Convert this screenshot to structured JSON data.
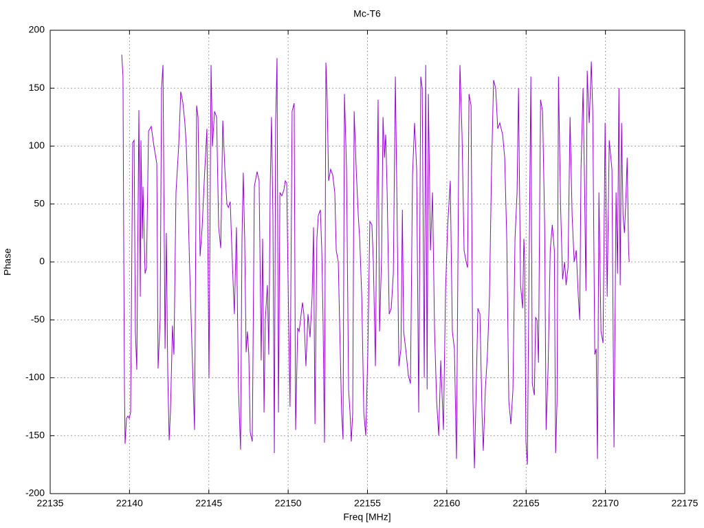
{
  "chart_data": {
    "type": "line",
    "title": "Mc-T6",
    "xlabel": "Freq [MHz]",
    "ylabel": "Phase",
    "color": "#9400d3",
    "grid": true,
    "xlim": [
      22135,
      22175
    ],
    "xticks": [
      22135,
      22140,
      22145,
      22150,
      22155,
      22160,
      22165,
      22170,
      22175
    ],
    "ylim": [
      -200,
      200
    ],
    "yticks": [
      -200,
      -150,
      -100,
      -50,
      0,
      50,
      100,
      150,
      200
    ],
    "x": [
      22139.51,
      22139.59,
      22139.64,
      22139.68,
      22139.72,
      22139.81,
      22139.9,
      22139.98,
      22140.07,
      22140.2,
      22140.29,
      22140.37,
      22140.46,
      22140.59,
      22140.68,
      22140.72,
      22140.81,
      22140.85,
      22140.98,
      22141.07,
      22141.2,
      22141.37,
      22141.54,
      22141.72,
      22141.8,
      22141.93,
      22142.02,
      22142.11,
      22142.24,
      22142.32,
      22142.41,
      22142.5,
      22142.58,
      22142.71,
      22142.8,
      22142.93,
      22143.1,
      22143.23,
      22143.36,
      22143.49,
      22143.58,
      22143.67,
      22143.8,
      22143.93,
      22144.1,
      22144.23,
      22144.32,
      22144.45,
      22144.58,
      22144.71,
      22144.88,
      22145.01,
      22145.14,
      22145.23,
      22145.36,
      22145.49,
      22145.62,
      22145.75,
      22145.88,
      22146.01,
      22146.14,
      22146.23,
      22146.35,
      22146.48,
      22146.61,
      22146.74,
      22146.87,
      22147.0,
      22147.09,
      22147.17,
      22147.26,
      22147.35,
      22147.43,
      22147.52,
      22147.61,
      22147.74,
      22147.87,
      22148.04,
      22148.17,
      22148.3,
      22148.39,
      22148.48,
      22148.56,
      22148.69,
      22148.78,
      22148.87,
      22148.95,
      22149.04,
      22149.13,
      22149.21,
      22149.3,
      22149.39,
      22149.43,
      22149.48,
      22149.6,
      22149.73,
      22149.82,
      22149.91,
      22150.04,
      22150.12,
      22150.25,
      22150.38,
      22150.47,
      22150.6,
      22150.69,
      22150.82,
      22150.9,
      22150.99,
      22151.12,
      22151.25,
      22151.38,
      22151.51,
      22151.6,
      22151.69,
      22151.81,
      22151.9,
      22152.03,
      22152.12,
      22152.2,
      22152.29,
      22152.38,
      22152.46,
      22152.55,
      22152.68,
      22152.81,
      22152.94,
      22153.03,
      22153.16,
      22153.24,
      22153.37,
      22153.46,
      22153.55,
      22153.68,
      22153.81,
      22153.9,
      22153.98,
      22154.07,
      22154.16,
      22154.29,
      22154.42,
      22154.51,
      22154.64,
      22154.77,
      22154.89,
      22155.02,
      22155.15,
      22155.28,
      22155.37,
      22155.5,
      22155.59,
      22155.67,
      22155.76,
      22155.89,
      22155.98,
      22156.07,
      22156.15,
      22156.24,
      22156.37,
      22156.5,
      22156.63,
      22156.76,
      22156.85,
      22156.98,
      22157.11,
      22157.2,
      22157.28,
      22157.41,
      22157.58,
      22157.71,
      22157.84,
      22157.97,
      22158.1,
      22158.23,
      22158.36,
      22158.45,
      22158.58,
      22158.67,
      22158.76,
      22158.84,
      22158.97,
      22159.1,
      22159.23,
      22159.36,
      22159.49,
      22159.62,
      22159.79,
      22159.92,
      22160.05,
      22160.22,
      22160.35,
      22160.48,
      22160.61,
      22160.74,
      22160.83,
      22160.96,
      22161.09,
      22161.22,
      22161.31,
      22161.4,
      22161.53,
      22161.65,
      22161.74,
      22161.83,
      22161.96,
      22162.09,
      22162.22,
      22162.3,
      22162.43,
      22162.56,
      22162.69,
      22162.82,
      22162.95,
      22163.08,
      22163.21,
      22163.34,
      22163.43,
      22163.52,
      22163.65,
      22163.78,
      22163.91,
      22164.04,
      22164.17,
      22164.3,
      22164.43,
      22164.52,
      22164.65,
      22164.78,
      22164.86,
      22164.91,
      22164.99,
      22165.08,
      22165.17,
      22165.3,
      22165.39,
      22165.52,
      22165.6,
      22165.69,
      22165.78,
      22165.91,
      22166.04,
      22166.17,
      22166.26,
      22166.39,
      22166.52,
      22166.65,
      22166.78,
      22166.86,
      22166.95,
      22167.04,
      22167.17,
      22167.3,
      22167.43,
      22167.52,
      22167.64,
      22167.77,
      22167.9,
      22168.03,
      22168.16,
      22168.29,
      22168.38,
      22168.46,
      22168.59,
      22168.68,
      22168.77,
      22168.85,
      22168.98,
      22169.11,
      22169.2,
      22169.33,
      22169.42,
      22169.46,
      22169.5,
      22169.59,
      22169.72,
      22169.85,
      22169.98,
      22170.11,
      22170.24,
      22170.41,
      22170.54,
      22170.67,
      22170.76,
      22170.85,
      22170.93,
      22171.02,
      22171.11,
      22171.2,
      22171.28,
      22171.37,
      22171.46,
      22171.5
    ],
    "values": [
      179,
      160,
      0,
      -105,
      -157,
      -135,
      -133,
      -135,
      -130,
      103,
      105,
      -60,
      -93,
      131,
      -30,
      105,
      20,
      65,
      -10,
      -5,
      113,
      117,
      100,
      85,
      -92,
      -50,
      150,
      170,
      -75,
      25,
      -95,
      -154,
      -130,
      -55,
      -80,
      60,
      100,
      147,
      138,
      120,
      100,
      60,
      -10,
      -70,
      -145,
      135,
      125,
      5,
      30,
      70,
      115,
      -100,
      170,
      100,
      130,
      125,
      30,
      12,
      122,
      80,
      50,
      47,
      52,
      0,
      -45,
      30,
      -110,
      -162,
      20,
      77,
      20,
      -78,
      -60,
      -80,
      -147,
      -155,
      65,
      78,
      70,
      -85,
      20,
      -130,
      -50,
      -20,
      -80,
      65,
      125,
      40,
      -165,
      120,
      176,
      -130,
      -60,
      60,
      57,
      62,
      70,
      68,
      -60,
      -125,
      130,
      137,
      -145,
      -57,
      -60,
      -45,
      -35,
      -45,
      -90,
      -45,
      -65,
      -30,
      30,
      -140,
      20,
      40,
      45,
      10,
      -50,
      -156,
      172,
      140,
      70,
      80,
      75,
      60,
      10,
      0,
      -50,
      -130,
      -153,
      145,
      80,
      -110,
      -130,
      -155,
      -130,
      130,
      80,
      40,
      20,
      -30,
      -130,
      -150,
      -80,
      35,
      32,
      0,
      -90,
      50,
      140,
      -60,
      5,
      125,
      90,
      110,
      60,
      -45,
      -40,
      -10,
      160,
      60,
      -90,
      -75,
      45,
      -60,
      -75,
      -98,
      -105,
      75,
      120,
      80,
      -130,
      160,
      150,
      -100,
      170,
      -110,
      145,
      10,
      60,
      -60,
      -120,
      -150,
      -85,
      -145,
      -25,
      30,
      70,
      -60,
      -75,
      -170,
      70,
      170,
      110,
      10,
      0,
      -5,
      145,
      135,
      -120,
      -178,
      -125,
      -40,
      -45,
      -130,
      -163,
      -110,
      -80,
      -30,
      80,
      157,
      150,
      115,
      120,
      115,
      110,
      90,
      20,
      -120,
      -140,
      -110,
      20,
      60,
      150,
      -20,
      -40,
      20,
      0,
      -155,
      -175,
      -30,
      160,
      -105,
      -115,
      -48,
      -50,
      -87,
      140,
      130,
      30,
      -145,
      -90,
      10,
      32,
      10,
      -165,
      -120,
      160,
      50,
      -15,
      0,
      -20,
      -5,
      125,
      40,
      0,
      10,
      -30,
      -50,
      80,
      150,
      70,
      -25,
      165,
      120,
      173,
      130,
      -80,
      -75,
      -130,
      -170,
      60,
      -60,
      -70,
      120,
      -30,
      105,
      80,
      -160,
      60,
      -10,
      150,
      -20,
      120,
      40,
      25,
      50,
      90,
      10,
      0
    ]
  }
}
